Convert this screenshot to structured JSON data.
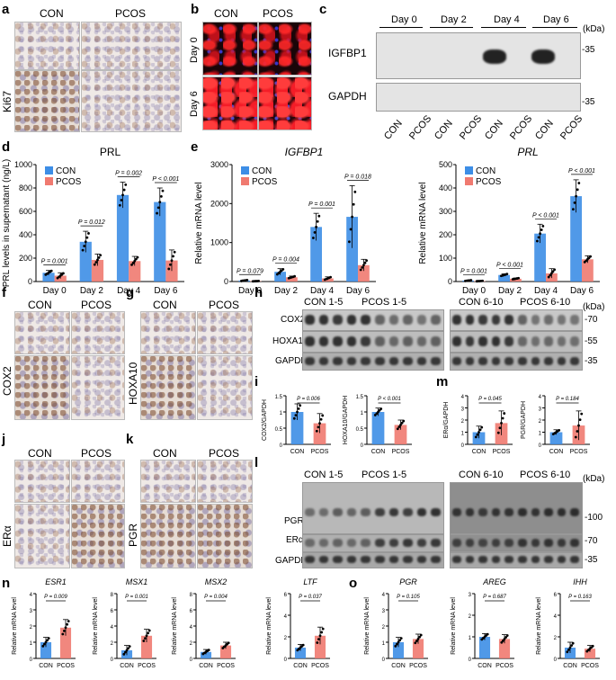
{
  "panels": {
    "a": {
      "letter": "a",
      "con": "CON",
      "pcos": "PCOS",
      "stain": "Ki67",
      "gl": "gl"
    },
    "b": {
      "letter": "b",
      "con": "CON",
      "pcos": "PCOS",
      "day0": "Day 0",
      "day6": "Day 6"
    },
    "c": {
      "letter": "c",
      "days": [
        "Day 0",
        "Day 2",
        "Day 4",
        "Day 6"
      ],
      "kda": "(kDa)",
      "rows": [
        "IGFBP1",
        "GAPDH"
      ],
      "mw": [
        "-35",
        "-35"
      ],
      "lanes": [
        "CON",
        "PCOS",
        "CON",
        "PCOS",
        "CON",
        "PCOS",
        "CON",
        "PCOS"
      ]
    },
    "d": {
      "letter": "d"
    },
    "e": {
      "letter": "e"
    },
    "f": {
      "letter": "f",
      "con": "CON",
      "pcos": "PCOS",
      "stain": "COX2"
    },
    "g": {
      "letter": "g",
      "con": "CON",
      "pcos": "PCOS",
      "stain": "HOXA10"
    },
    "h": {
      "letter": "h",
      "groups": [
        "CON 1-5",
        "PCOS 1-5",
        "CON 6-10",
        "PCOS 6-10"
      ],
      "kda": "(kDa)",
      "rows": [
        "COX2",
        "HOXA10",
        "GAPDH"
      ],
      "mw": [
        "-70",
        "-55",
        "-35"
      ]
    },
    "i": {
      "letter": "i"
    },
    "j": {
      "letter": "j",
      "con": "CON",
      "pcos": "PCOS",
      "stain": "ERα"
    },
    "k": {
      "letter": "k",
      "con": "CON",
      "pcos": "PCOS",
      "stain": "PGR"
    },
    "l": {
      "letter": "l",
      "groups": [
        "CON 1-5",
        "PCOS 1-5",
        "CON 6-10",
        "PCOS 6-10"
      ],
      "kda": "(kDa)",
      "rows": [
        "PGR",
        "ERα",
        "GAPDH"
      ],
      "mw": [
        "-100",
        "-70",
        "-35"
      ]
    },
    "m": {
      "letter": "m"
    },
    "n": {
      "letter": "n"
    },
    "o": {
      "letter": "o"
    }
  },
  "colors": {
    "con": "#3d8ee6",
    "pcos": "#f07a70"
  },
  "chart_data": [
    {
      "id": "d",
      "type": "bar",
      "title": "PRL",
      "ylabel": "PRL levels in supernatant (ng/L)",
      "categories": [
        "Day 0",
        "Day 2",
        "Day 4",
        "Day 6"
      ],
      "ylim": [
        0,
        1000
      ],
      "yticks": [
        0,
        200,
        400,
        600,
        800,
        1000
      ],
      "legend": [
        "CON",
        "PCOS"
      ],
      "series": [
        {
          "name": "CON",
          "values": [
            75,
            340,
            740,
            680
          ],
          "err": [
            20,
            90,
            110,
            120
          ]
        },
        {
          "name": "PCOS",
          "values": [
            50,
            185,
            175,
            180
          ],
          "err": [
            25,
            50,
            40,
            90
          ]
        }
      ],
      "pvalues": [
        "P = 0.001",
        "P = 0.012",
        "P = 0.002",
        "P < 0.001"
      ],
      "italic_title": false
    },
    {
      "id": "e1",
      "type": "bar",
      "title": "IGFBP1",
      "ylabel": "Relative mRNA level",
      "categories": [
        "Day 0",
        "Day 2",
        "Day 4",
        "Day 6"
      ],
      "ylim": [
        0,
        3000
      ],
      "yticks": [
        0,
        1000,
        2000,
        3000
      ],
      "legend": [
        "CON",
        "PCOS"
      ],
      "series": [
        {
          "name": "CON",
          "values": [
            25,
            250,
            1400,
            1660
          ],
          "err": [
            15,
            80,
            350,
            800
          ]
        },
        {
          "name": "PCOS",
          "values": [
            10,
            110,
            80,
            420
          ],
          "err": [
            5,
            30,
            40,
            150
          ]
        }
      ],
      "pvalues": [
        "P = 0.079",
        "P = 0.004",
        "P = 0.001",
        "P = 0.018"
      ],
      "italic_title": true
    },
    {
      "id": "e2",
      "type": "bar",
      "title": "PRL",
      "ylabel": "Relative mRNA level",
      "categories": [
        "Day 0",
        "Day 2",
        "Day 4",
        "Day 6"
      ],
      "ylim": [
        0,
        500
      ],
      "yticks": [
        0,
        100,
        200,
        300,
        400,
        500
      ],
      "legend": [
        "CON",
        "PCOS"
      ],
      "series": [
        {
          "name": "CON",
          "values": [
            4,
            28,
            205,
            365
          ],
          "err": [
            2,
            5,
            40,
            70
          ]
        },
        {
          "name": "PCOS",
          "values": [
            2,
            12,
            35,
            95
          ],
          "err": [
            1,
            3,
            20,
            15
          ]
        }
      ],
      "pvalues": [
        "P = 0.001",
        "P < 0.001",
        "P < 0.001",
        "P < 0.001"
      ],
      "italic_title": true
    },
    {
      "id": "i1",
      "type": "bar",
      "ylabel": "COX2/GAPDH",
      "categories": [
        "CON",
        "PCOS"
      ],
      "ylim": [
        0,
        1.5
      ],
      "yticks": [
        0,
        0.5,
        1.0,
        1.5
      ],
      "series": [
        {
          "values": [
            1.0,
            0.65
          ],
          "err": [
            0.25,
            0.3
          ]
        }
      ],
      "pvalues": [
        "P = 0.006"
      ]
    },
    {
      "id": "i2",
      "type": "bar",
      "ylabel": "HOXA10/GAPDH",
      "categories": [
        "CON",
        "PCOS"
      ],
      "ylim": [
        0,
        1.5
      ],
      "yticks": [
        0,
        0.5,
        1.0,
        1.5
      ],
      "series": [
        {
          "values": [
            1.0,
            0.6
          ],
          "err": [
            0.12,
            0.15
          ]
        }
      ],
      "pvalues": [
        "P < 0.001"
      ]
    },
    {
      "id": "m1",
      "type": "bar",
      "ylabel": "ERα/GAPDH",
      "categories": [
        "CON",
        "PCOS"
      ],
      "ylim": [
        0,
        4
      ],
      "yticks": [
        0,
        1,
        2,
        3,
        4
      ],
      "series": [
        {
          "values": [
            1.0,
            1.75
          ],
          "err": [
            0.5,
            1.0
          ]
        }
      ],
      "pvalues": [
        "P = 0.045"
      ]
    },
    {
      "id": "m2",
      "type": "bar",
      "ylabel": "PGR/GAPDH",
      "categories": [
        "CON",
        "PCOS"
      ],
      "ylim": [
        0,
        4
      ],
      "yticks": [
        0,
        1,
        2,
        3,
        4
      ],
      "series": [
        {
          "values": [
            1.0,
            1.55
          ],
          "err": [
            0.2,
            1.2
          ]
        }
      ],
      "pvalues": [
        "P = 0.184"
      ]
    },
    {
      "id": "n1",
      "type": "bar",
      "title": "ESR1",
      "ylabel": "Relative mRNA level",
      "categories": [
        "CON",
        "PCOS"
      ],
      "ylim": [
        0,
        4
      ],
      "yticks": [
        0,
        1,
        2,
        3,
        4
      ],
      "series": [
        {
          "values": [
            1.0,
            1.9
          ],
          "err": [
            0.3,
            0.5
          ]
        }
      ],
      "pvalues": [
        "P = 0.009"
      ],
      "italic_title": true
    },
    {
      "id": "n2",
      "type": "bar",
      "title": "MSX1",
      "ylabel": "Relative mRNA level",
      "categories": [
        "CON",
        "PCOS"
      ],
      "ylim": [
        0,
        8
      ],
      "yticks": [
        0,
        2,
        4,
        6,
        8
      ],
      "series": [
        {
          "values": [
            1.0,
            2.8
          ],
          "err": [
            0.6,
            0.8
          ]
        }
      ],
      "pvalues": [
        "P = 0.001"
      ],
      "italic_title": true
    },
    {
      "id": "n3",
      "type": "bar",
      "title": "MSX2",
      "ylabel": "Relative mRNA level",
      "categories": [
        "CON",
        "PCOS"
      ],
      "ylim": [
        0,
        8
      ],
      "yticks": [
        0,
        2,
        4,
        6,
        8
      ],
      "series": [
        {
          "values": [
            0.8,
            1.6
          ],
          "err": [
            0.3,
            0.4
          ]
        }
      ],
      "pvalues": [
        "P = 0.004"
      ],
      "italic_title": true
    },
    {
      "id": "n4",
      "type": "bar",
      "title": "LTF",
      "ylabel": "Relative mRNA level",
      "categories": [
        "CON",
        "PCOS"
      ],
      "ylim": [
        0,
        6
      ],
      "yticks": [
        0,
        2,
        4,
        6
      ],
      "series": [
        {
          "values": [
            1.0,
            2.1
          ],
          "err": [
            0.3,
            0.8
          ]
        }
      ],
      "pvalues": [
        "P = 0.037"
      ],
      "italic_title": true
    },
    {
      "id": "o1",
      "type": "bar",
      "title": "PGR",
      "ylabel": "Relative mRNA level",
      "categories": [
        "CON",
        "PCOS"
      ],
      "ylim": [
        0,
        4
      ],
      "yticks": [
        0,
        1,
        2,
        3,
        4
      ],
      "series": [
        {
          "values": [
            1.0,
            1.2
          ],
          "err": [
            0.3,
            0.3
          ]
        }
      ],
      "pvalues": [
        "P = 0.105"
      ],
      "italic_title": true
    },
    {
      "id": "o2",
      "type": "bar",
      "title": "AREG",
      "ylabel": "Relative mRNA level",
      "categories": [
        "CON",
        "PCOS"
      ],
      "ylim": [
        0,
        3
      ],
      "yticks": [
        0,
        1,
        2,
        3
      ],
      "series": [
        {
          "values": [
            1.0,
            0.9
          ],
          "err": [
            0.15,
            0.2
          ]
        }
      ],
      "pvalues": [
        "P = 0.687"
      ],
      "italic_title": true
    },
    {
      "id": "o3",
      "type": "bar",
      "title": "IHH",
      "ylabel": "Relative mRNA level",
      "categories": [
        "CON",
        "PCOS"
      ],
      "ylim": [
        0,
        6
      ],
      "yticks": [
        0,
        2,
        4,
        6
      ],
      "series": [
        {
          "values": [
            1.0,
            0.9
          ],
          "err": [
            0.5,
            0.3
          ]
        }
      ],
      "pvalues": [
        "P = 0.163"
      ],
      "italic_title": true
    }
  ]
}
